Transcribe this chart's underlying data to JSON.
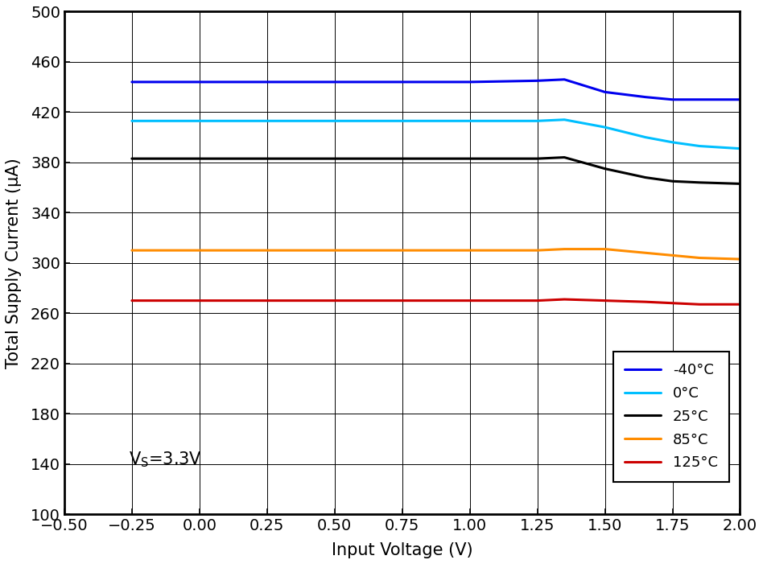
{
  "title": "",
  "xlabel": "Input Voltage (V)",
  "ylabel": "Total Supply Current (μA)",
  "xlim": [
    -0.5,
    2.0
  ],
  "ylim": [
    100,
    500
  ],
  "xticks": [
    -0.5,
    -0.25,
    0,
    0.25,
    0.5,
    0.75,
    1.0,
    1.25,
    1.5,
    1.75,
    2.0
  ],
  "yticks": [
    100,
    140,
    180,
    220,
    260,
    300,
    340,
    380,
    420,
    460,
    500
  ],
  "annotation_main": "V",
  "annotation_sub": "S",
  "annotation_rest": "=3.3V",
  "series": [
    {
      "label": "-40°C",
      "color": "#0000EE",
      "x": [
        -0.25,
        0.0,
        0.25,
        0.5,
        0.75,
        1.0,
        1.25,
        1.35,
        1.5,
        1.65,
        1.75,
        1.85,
        2.0
      ],
      "y": [
        444,
        444,
        444,
        444,
        444,
        444,
        445,
        446,
        436,
        432,
        430,
        430,
        430
      ]
    },
    {
      "label": "0°C",
      "color": "#00BFFF",
      "x": [
        -0.25,
        0.0,
        0.25,
        0.5,
        0.75,
        1.0,
        1.25,
        1.35,
        1.5,
        1.65,
        1.75,
        1.85,
        2.0
      ],
      "y": [
        413,
        413,
        413,
        413,
        413,
        413,
        413,
        414,
        408,
        400,
        396,
        393,
        391
      ]
    },
    {
      "label": "25°C",
      "color": "#000000",
      "x": [
        -0.25,
        0.0,
        0.25,
        0.5,
        0.75,
        1.0,
        1.25,
        1.35,
        1.5,
        1.65,
        1.75,
        1.85,
        2.0
      ],
      "y": [
        383,
        383,
        383,
        383,
        383,
        383,
        383,
        384,
        375,
        368,
        365,
        364,
        363
      ]
    },
    {
      "label": "85°C",
      "color": "#FF8C00",
      "x": [
        -0.25,
        0.0,
        0.25,
        0.5,
        0.75,
        1.0,
        1.25,
        1.35,
        1.5,
        1.65,
        1.75,
        1.85,
        2.0
      ],
      "y": [
        310,
        310,
        310,
        310,
        310,
        310,
        310,
        311,
        311,
        308,
        306,
        304,
        303
      ]
    },
    {
      "label": "125°C",
      "color": "#CC0000",
      "x": [
        -0.25,
        0.0,
        0.25,
        0.5,
        0.75,
        1.0,
        1.25,
        1.35,
        1.5,
        1.65,
        1.75,
        1.85,
        2.0
      ],
      "y": [
        270,
        270,
        270,
        270,
        270,
        270,
        270,
        271,
        270,
        269,
        268,
        267,
        267
      ]
    }
  ],
  "linewidth": 2.2,
  "figsize": [
    9.48,
    7.01
  ],
  "dpi": 100,
  "grid_color": "#000000",
  "background_color": "#ffffff",
  "font_family": "Arial",
  "tick_fontsize": 14,
  "label_fontsize": 15,
  "legend_fontsize": 13,
  "spine_linewidth": 2.0,
  "grid_linewidth": 0.7
}
